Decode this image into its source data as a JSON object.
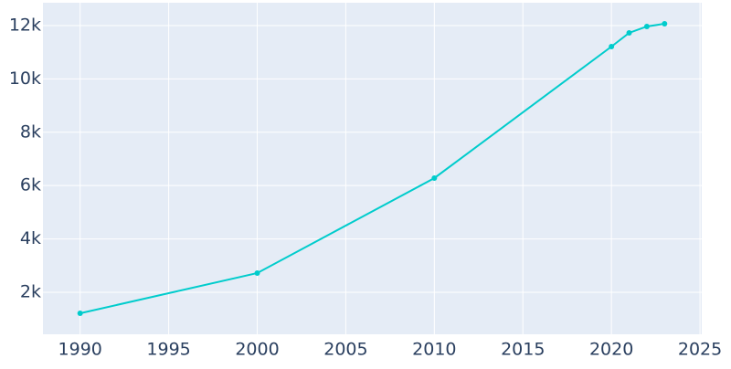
{
  "chart_data": {
    "type": "line",
    "x": [
      1990,
      2000,
      2010,
      2020,
      2021,
      2022,
      2023
    ],
    "series": [
      {
        "color": "#00cccc",
        "values": [
          1212,
          2719,
          6281,
          11212,
          11726,
          11966,
          12068
        ]
      }
    ],
    "xlim": [
      1987.9,
      2025.1
    ],
    "xticks": [
      1990,
      1995,
      2000,
      2005,
      2010,
      2015,
      2020,
      2025
    ],
    "ylim": [
      424,
      12856
    ],
    "yticks": [
      {
        "value": 2000,
        "label": "2k"
      },
      {
        "value": 4000,
        "label": "4k"
      },
      {
        "value": 6000,
        "label": "6k"
      },
      {
        "value": 8000,
        "label": "8k"
      },
      {
        "value": 10000,
        "label": "10k"
      },
      {
        "value": 12000,
        "label": "12k"
      }
    ],
    "grid": true
  }
}
